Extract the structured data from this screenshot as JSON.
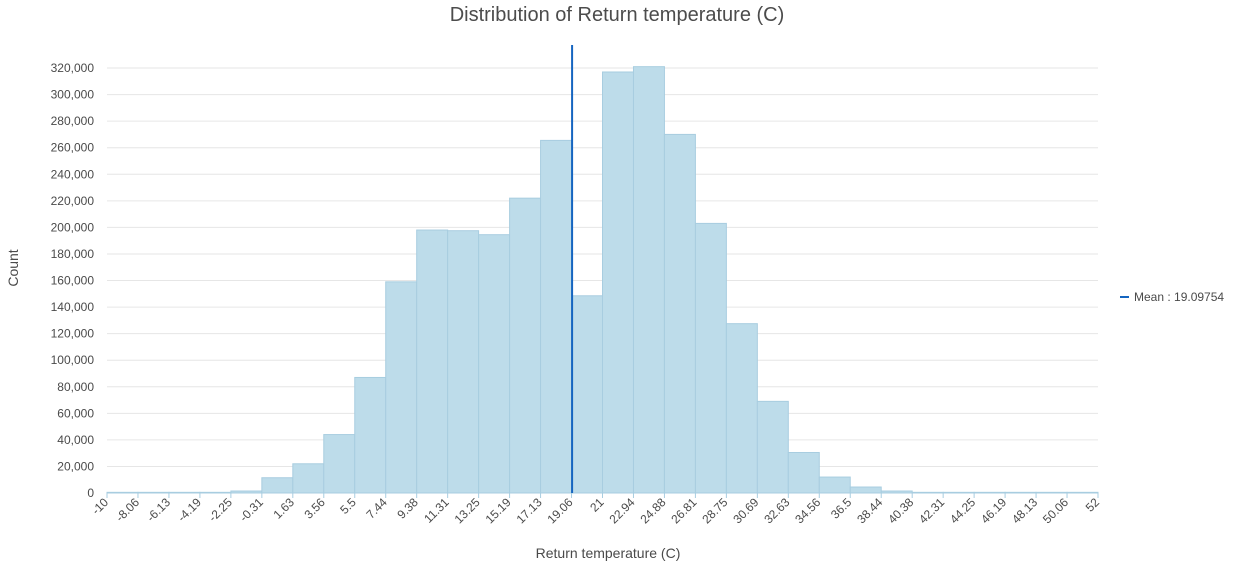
{
  "chart_data": {
    "type": "bar",
    "title": "Distribution of Return temperature (C)",
    "xlabel": "Return temperature (C)",
    "ylabel": "Count",
    "ylim": [
      0,
      320000
    ],
    "yticks": [
      0,
      20000,
      40000,
      60000,
      80000,
      100000,
      120000,
      140000,
      160000,
      180000,
      200000,
      220000,
      240000,
      260000,
      280000,
      300000,
      320000
    ],
    "ytick_labels": [
      "0",
      "20,000",
      "40,000",
      "60,000",
      "80,000",
      "100,000",
      "120,000",
      "140,000",
      "160,000",
      "180,000",
      "200,000",
      "220,000",
      "240,000",
      "260,000",
      "280,000",
      "300,000",
      "320,000"
    ],
    "bin_edge_labels": [
      "-10",
      "-8.06",
      "-6.13",
      "-4.19",
      "-2.25",
      "-0.31",
      "1.63",
      "3.56",
      "5.5",
      "7.44",
      "9.38",
      "11.31",
      "13.25",
      "15.19",
      "17.13",
      "19.06",
      "21",
      "22.94",
      "24.88",
      "26.81",
      "28.75",
      "30.69",
      "32.63",
      "34.56",
      "36.5",
      "38.44",
      "40.38",
      "42.31",
      "44.25",
      "46.19",
      "48.13",
      "50.06",
      "52"
    ],
    "values": [
      500,
      500,
      500,
      500,
      1500,
      11500,
      22000,
      44000,
      87000,
      159000,
      198000,
      197500,
      194500,
      222000,
      265500,
      148500,
      317000,
      321000,
      270000,
      203000,
      127500,
      69000,
      30500,
      12000,
      4500,
      1500,
      500,
      500,
      500,
      500,
      500,
      500
    ],
    "mean": 19.09754,
    "legend": [
      {
        "label": "Mean : 19.09754",
        "color": "#1565c0"
      }
    ],
    "legend_position": "right",
    "grid": true,
    "colors": {
      "bar_fill": "#bddcea",
      "bar_stroke": "#a8cde0",
      "mean_line": "#1565c0",
      "grid": "#e6e6e6",
      "axis": "#a8cde0"
    }
  }
}
